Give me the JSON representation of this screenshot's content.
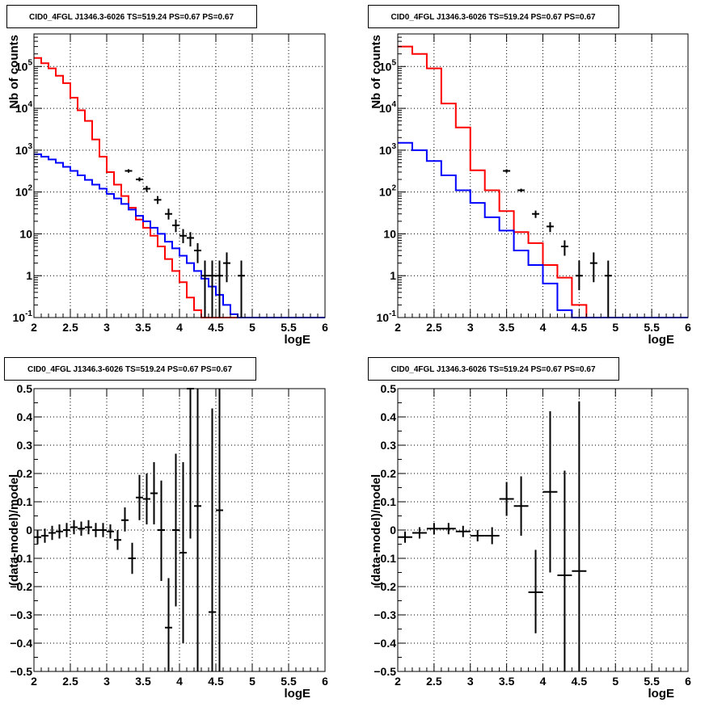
{
  "colors": {
    "model": "#ff0000",
    "background_component": "#0000ff",
    "data_points": "#000000",
    "grid": "#000000"
  },
  "chart_data": [
    {
      "id": "top-left",
      "type": "line",
      "title": "CID0_4FGL J1346.3-6026 TS=519.24 PS=0.67 PS=0.67",
      "xlabel": "logE",
      "ylabel": "Nb of counts",
      "xlim": [
        2,
        6
      ],
      "ylim": [
        0.1,
        600000
      ],
      "yscale": "log",
      "grid": true,
      "xticks": [
        "2",
        "2.5",
        "3",
        "3.5",
        "4",
        "4.5",
        "5",
        "5.5",
        "6"
      ],
      "yticks": [
        {
          "v": 0.1,
          "base": "10",
          "exp": "-1"
        },
        {
          "v": 1,
          "label": "1"
        },
        {
          "v": 10,
          "label": "10"
        },
        {
          "v": 100,
          "base": "10",
          "exp": "2"
        },
        {
          "v": 1000,
          "base": "10",
          "exp": "3"
        },
        {
          "v": 10000,
          "base": "10",
          "exp": "4"
        },
        {
          "v": 100000,
          "base": "10",
          "exp": "5"
        }
      ],
      "bin_edges": [
        2,
        2.1,
        2.2,
        2.3,
        2.4,
        2.5,
        2.6,
        2.7,
        2.8,
        2.9,
        3,
        3.1,
        3.2,
        3.3,
        3.4,
        3.5,
        3.6,
        3.7,
        3.8,
        3.9,
        4,
        4.1,
        4.2,
        4.3,
        4.4,
        4.5,
        4.6,
        4.7,
        4.8,
        4.9,
        5,
        5.1,
        5.2,
        5.3,
        5.4,
        5.5,
        5.6,
        5.7,
        5.8,
        5.9,
        6
      ],
      "series": [
        {
          "name": "",
          "role": "model",
          "style": "step",
          "values": [
            160000,
            120000,
            90000,
            60000,
            40000,
            18000,
            9000,
            5000,
            1800,
            700,
            300,
            150,
            80,
            42,
            22,
            14,
            9,
            5,
            2.5,
            1.3,
            0.7,
            0.3,
            0.15,
            0.1,
            0.1,
            0.1,
            0.1,
            0.1,
            0.1,
            0.1,
            0.1,
            0.1,
            0.1,
            0.1,
            0.1,
            0.1,
            0.1,
            0.1,
            0.1,
            0.1
          ]
        },
        {
          "name": "",
          "role": "background",
          "style": "step",
          "values": [
            800,
            700,
            600,
            500,
            400,
            320,
            250,
            195,
            150,
            120,
            90,
            70,
            52,
            38,
            27,
            20,
            14,
            10,
            6.5,
            4.5,
            3,
            2,
            1.3,
            0.85,
            0.55,
            0.35,
            0.2,
            0.12,
            0.1,
            0.1,
            0.1,
            0.1,
            0.1,
            0.1,
            0.1,
            0.1,
            0.1,
            0.1,
            0.1,
            0.1
          ]
        }
      ],
      "points": [
        {
          "x": 3.3,
          "y": 320,
          "ylo": 290,
          "yhi": 350
        },
        {
          "x": 3.45,
          "y": 200,
          "ylo": 180,
          "yhi": 225
        },
        {
          "x": 3.55,
          "y": 120,
          "ylo": 100,
          "yhi": 140
        },
        {
          "x": 3.7,
          "y": 65,
          "ylo": 52,
          "yhi": 80
        },
        {
          "x": 3.85,
          "y": 30,
          "ylo": 22,
          "yhi": 40
        },
        {
          "x": 3.95,
          "y": 16,
          "ylo": 11,
          "yhi": 22
        },
        {
          "x": 4.05,
          "y": 9,
          "ylo": 6,
          "yhi": 13
        },
        {
          "x": 4.15,
          "y": 8,
          "ylo": 5,
          "yhi": 11
        },
        {
          "x": 4.25,
          "y": 4,
          "ylo": 2,
          "yhi": 6
        },
        {
          "x": 4.35,
          "y": 1,
          "ylo": 0.1,
          "yhi": 2.3
        },
        {
          "x": 4.45,
          "y": 1,
          "ylo": 0.1,
          "yhi": 2.3
        },
        {
          "x": 4.55,
          "y": 1,
          "ylo": 0.1,
          "yhi": 2.3
        },
        {
          "x": 4.65,
          "y": 2,
          "ylo": 0.7,
          "yhi": 3.6
        },
        {
          "x": 4.85,
          "y": 1,
          "ylo": 0.1,
          "yhi": 2.3
        }
      ]
    },
    {
      "id": "top-right",
      "type": "line",
      "title": "CID0_4FGL J1346.3-6026 TS=519.24 PS=0.67 PS=0.67",
      "xlabel": "logE",
      "ylabel": "Nb of counts",
      "xlim": [
        2,
        6
      ],
      "ylim": [
        0.1,
        600000
      ],
      "yscale": "log",
      "grid": true,
      "xticks": [
        "2",
        "2.5",
        "3",
        "3.5",
        "4",
        "4.5",
        "5",
        "5.5",
        "6"
      ],
      "yticks": [
        {
          "v": 0.1,
          "base": "10",
          "exp": "-1"
        },
        {
          "v": 1,
          "label": "1"
        },
        {
          "v": 10,
          "label": "10"
        },
        {
          "v": 100,
          "base": "10",
          "exp": "2"
        },
        {
          "v": 1000,
          "base": "10",
          "exp": "3"
        },
        {
          "v": 10000,
          "base": "10",
          "exp": "4"
        },
        {
          "v": 100000,
          "base": "10",
          "exp": "5"
        }
      ],
      "bin_edges": [
        2,
        2.2,
        2.4,
        2.6,
        2.8,
        3,
        3.2,
        3.4,
        3.6,
        3.8,
        4,
        4.2,
        4.4,
        4.6,
        4.8,
        5,
        5.2,
        5.4,
        5.6,
        5.8,
        6
      ],
      "series": [
        {
          "name": "",
          "role": "model",
          "style": "step",
          "values": [
            300000,
            200000,
            90000,
            13000,
            3500,
            330,
            110,
            35,
            11,
            6,
            1.8,
            0.9,
            0.2,
            0.1,
            0.1,
            0.1,
            0.1,
            0.1,
            0.1,
            0.1
          ]
        },
        {
          "name": "",
          "role": "background",
          "style": "step",
          "values": [
            1500,
            1000,
            550,
            250,
            110,
            55,
            25,
            12,
            4,
            1.8,
            0.65,
            0.15,
            0.1,
            0.1,
            0.1,
            0.1,
            0.1,
            0.1,
            0.1,
            0.1
          ]
        }
      ],
      "points": [
        {
          "x": 3.5,
          "y": 320,
          "ylo": 290,
          "yhi": 350
        },
        {
          "x": 3.7,
          "y": 110,
          "ylo": 100,
          "yhi": 120
        },
        {
          "x": 3.9,
          "y": 30,
          "ylo": 24,
          "yhi": 36
        },
        {
          "x": 4.1,
          "y": 15,
          "ylo": 11,
          "yhi": 19
        },
        {
          "x": 4.3,
          "y": 5,
          "ylo": 3,
          "yhi": 7
        },
        {
          "x": 4.5,
          "y": 1,
          "ylo": 0.45,
          "yhi": 2.3
        },
        {
          "x": 4.7,
          "y": 2,
          "ylo": 0.7,
          "yhi": 3.6
        },
        {
          "x": 4.9,
          "y": 1,
          "ylo": 0.1,
          "yhi": 2.3
        }
      ]
    },
    {
      "id": "bottom-left",
      "type": "scatter",
      "title": "CID0_4FGL J1346.3-6026 TS=519.24 PS=0.67 PS=0.67",
      "xlabel": "logE",
      "ylabel": "(data-model)/model",
      "xlim": [
        2,
        6
      ],
      "ylim": [
        -0.5,
        0.5
      ],
      "yscale": "linear",
      "grid": true,
      "xticks": [
        "2",
        "2.5",
        "3",
        "3.5",
        "4",
        "4.5",
        "5",
        "5.5",
        "6"
      ],
      "yticks": [
        {
          "v": -0.5,
          "label": "−0.5"
        },
        {
          "v": -0.4,
          "label": "−0.4"
        },
        {
          "v": -0.3,
          "label": "−0.3"
        },
        {
          "v": -0.2,
          "label": "−0.2"
        },
        {
          "v": -0.1,
          "label": "−0.1"
        },
        {
          "v": 0,
          "label": "0"
        },
        {
          "v": 0.1,
          "label": "0.1"
        },
        {
          "v": 0.2,
          "label": "0.2"
        },
        {
          "v": 0.3,
          "label": "0.3"
        },
        {
          "v": 0.4,
          "label": "0.4"
        },
        {
          "v": 0.5,
          "label": "0.5"
        }
      ],
      "xerr": 0.05,
      "points": [
        {
          "x": 2.05,
          "y": -0.025,
          "ylo": -0.05,
          "yhi": 0.0
        },
        {
          "x": 2.15,
          "y": -0.02,
          "ylo": -0.045,
          "yhi": 0.005
        },
        {
          "x": 2.25,
          "y": -0.01,
          "ylo": -0.035,
          "yhi": 0.015
        },
        {
          "x": 2.35,
          "y": -0.005,
          "ylo": -0.03,
          "yhi": 0.02
        },
        {
          "x": 2.45,
          "y": 0.0,
          "ylo": -0.025,
          "yhi": 0.025
        },
        {
          "x": 2.55,
          "y": 0.01,
          "ylo": -0.015,
          "yhi": 0.035
        },
        {
          "x": 2.65,
          "y": 0.005,
          "ylo": -0.02,
          "yhi": 0.03
        },
        {
          "x": 2.75,
          "y": 0.01,
          "ylo": -0.015,
          "yhi": 0.035
        },
        {
          "x": 2.85,
          "y": 0.0,
          "ylo": -0.025,
          "yhi": 0.025
        },
        {
          "x": 2.95,
          "y": 0.0,
          "ylo": -0.025,
          "yhi": 0.025
        },
        {
          "x": 3.05,
          "y": -0.005,
          "ylo": -0.03,
          "yhi": 0.02
        },
        {
          "x": 3.15,
          "y": -0.035,
          "ylo": -0.07,
          "yhi": 0.0
        },
        {
          "x": 3.25,
          "y": 0.035,
          "ylo": -0.005,
          "yhi": 0.08
        },
        {
          "x": 3.35,
          "y": -0.1,
          "ylo": -0.155,
          "yhi": -0.045
        },
        {
          "x": 3.45,
          "y": 0.115,
          "ylo": 0.035,
          "yhi": 0.195
        },
        {
          "x": 3.55,
          "y": 0.11,
          "ylo": 0.02,
          "yhi": 0.2
        },
        {
          "x": 3.65,
          "y": 0.13,
          "ylo": 0.02,
          "yhi": 0.24
        },
        {
          "x": 3.75,
          "y": 0.0,
          "ylo": -0.18,
          "yhi": 0.175
        },
        {
          "x": 3.85,
          "y": -0.345,
          "ylo": -0.5,
          "yhi": -0.17
        },
        {
          "x": 3.95,
          "y": 0.0,
          "ylo": -0.27,
          "yhi": 0.27
        },
        {
          "x": 4.05,
          "y": -0.08,
          "ylo": -0.4,
          "yhi": 0.24
        },
        {
          "x": 4.15,
          "y": 0.5,
          "ylo": -0.03,
          "yhi": 0.5
        },
        {
          "x": 4.25,
          "y": 0.085,
          "ylo": -0.5,
          "yhi": 0.5
        },
        {
          "x": 4.45,
          "y": -0.29,
          "ylo": -0.5,
          "yhi": 0.43
        },
        {
          "x": 4.55,
          "y": 0.07,
          "ylo": -0.5,
          "yhi": 0.5
        }
      ]
    },
    {
      "id": "bottom-right",
      "type": "scatter",
      "title": "CID0_4FGL J1346.3-6026 TS=519.24 PS=0.67 PS=0.67",
      "xlabel": "logE",
      "ylabel": "(data-model)/model",
      "xlim": [
        2,
        6
      ],
      "ylim": [
        -0.5,
        0.5
      ],
      "yscale": "linear",
      "grid": true,
      "xticks": [
        "2",
        "2.5",
        "3",
        "3.5",
        "4",
        "4.5",
        "5",
        "5.5",
        "6"
      ],
      "yticks": [
        {
          "v": -0.5,
          "label": "−0.5"
        },
        {
          "v": -0.4,
          "label": "−0.4"
        },
        {
          "v": -0.3,
          "label": "−0.3"
        },
        {
          "v": -0.2,
          "label": "−0.2"
        },
        {
          "v": -0.1,
          "label": "−0.1"
        },
        {
          "v": 0,
          "label": "0"
        },
        {
          "v": 0.1,
          "label": "0.1"
        },
        {
          "v": 0.2,
          "label": "0.2"
        },
        {
          "v": 0.3,
          "label": "0.3"
        },
        {
          "v": 0.4,
          "label": "0.4"
        },
        {
          "v": 0.5,
          "label": "0.5"
        }
      ],
      "xerr": 0.1,
      "points": [
        {
          "x": 2.1,
          "y": -0.025,
          "ylo": -0.045,
          "yhi": -0.005
        },
        {
          "x": 2.3,
          "y": -0.01,
          "ylo": -0.03,
          "yhi": 0.01
        },
        {
          "x": 2.5,
          "y": 0.005,
          "ylo": -0.015,
          "yhi": 0.025
        },
        {
          "x": 2.7,
          "y": 0.005,
          "ylo": -0.015,
          "yhi": 0.025
        },
        {
          "x": 2.9,
          "y": -0.005,
          "ylo": -0.025,
          "yhi": 0.015
        },
        {
          "x": 3.1,
          "y": -0.02,
          "ylo": -0.04,
          "yhi": 0.0
        },
        {
          "x": 3.3,
          "y": -0.02,
          "ylo": -0.05,
          "yhi": 0.01
        },
        {
          "x": 3.5,
          "y": 0.11,
          "ylo": 0.05,
          "yhi": 0.17
        },
        {
          "x": 3.7,
          "y": 0.085,
          "ylo": -0.02,
          "yhi": 0.19
        },
        {
          "x": 3.9,
          "y": -0.22,
          "ylo": -0.365,
          "yhi": -0.07
        },
        {
          "x": 4.1,
          "y": 0.135,
          "ylo": -0.15,
          "yhi": 0.42
        },
        {
          "x": 4.3,
          "y": -0.16,
          "ylo": -0.5,
          "yhi": 0.21
        },
        {
          "x": 4.5,
          "y": -0.145,
          "ylo": -0.5,
          "yhi": 0.455
        }
      ]
    }
  ]
}
